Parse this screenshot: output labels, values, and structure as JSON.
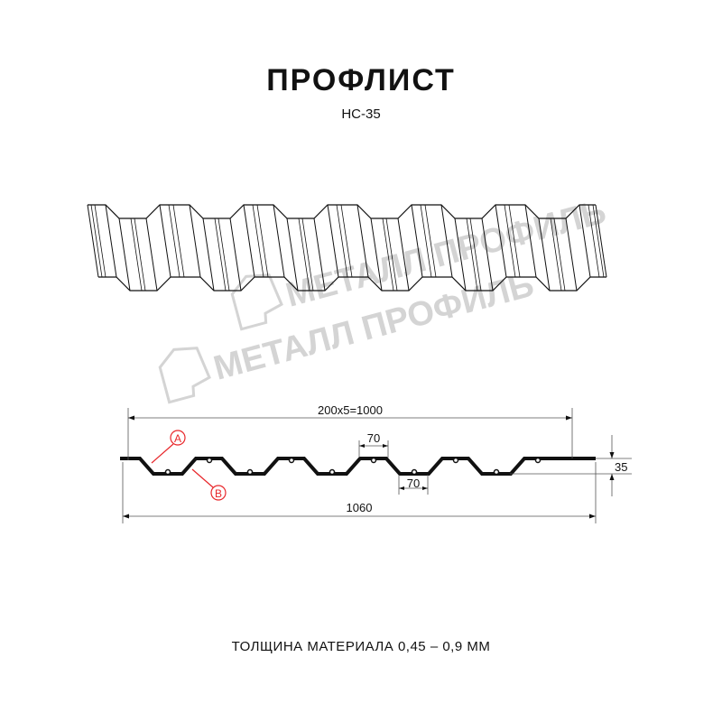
{
  "header": {
    "title": "ПРОФЛИСТ",
    "model": "НС-35"
  },
  "watermark": {
    "text": "МЕТАЛЛ ПРОФИЛЬ"
  },
  "drawing": {
    "dimension_total_pitch": "200x5=1000",
    "dimension_width": "1060",
    "dimension_height": "35",
    "dimension_top_flat": "70",
    "dimension_bottom_flat": "70",
    "callout_a": "A",
    "callout_b": "B",
    "callout_color": "#e8262a"
  },
  "footer": {
    "thickness": "ТОЛЩИНА МАТЕРИАЛА 0,45 – 0,9 ММ"
  }
}
